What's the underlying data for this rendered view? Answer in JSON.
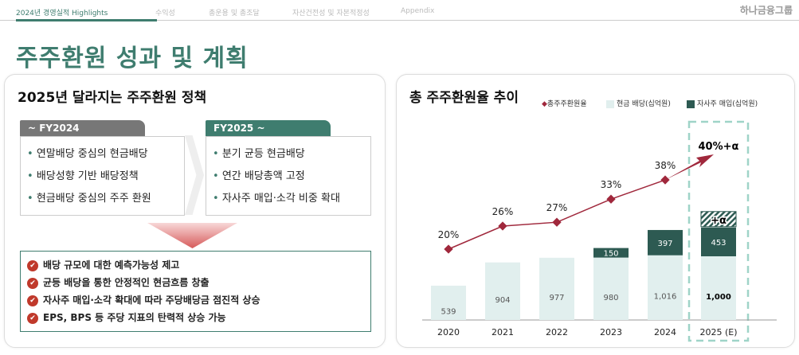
{
  "nav": {
    "items": [
      "2024년 경영실적 Highlights",
      "수익성",
      "총운용 및 총조달",
      "자산건전성 및 자본적정성",
      "Appendix"
    ],
    "logo": "하나금융그룹"
  },
  "page_title": "주주환원 성과 및 계획",
  "left": {
    "title": "2025년 달라지는 주주환원 정책",
    "fy2024": {
      "label": "~ FY2024",
      "items": [
        "연말배당 중심의 현금배당",
        "배당성향 기반 배당정책",
        "현금배당 중심의 주주 환원"
      ]
    },
    "fy2025": {
      "label": "FY2025 ~",
      "items": [
        "분기 균등 현금배당",
        "연간 배당총액 고정",
        "자사주 매입·소각 비중 확대"
      ]
    },
    "effects": [
      "배당 규모에 대한 예측가능성 제고",
      "균등 배당을 통한 안정적인 현금흐름 창출",
      "자사주 매입·소각 확대에 따라 주당배당금 점진적 상승",
      "EPS, BPS 등 주당 지표의 탄력적 상승 가능"
    ]
  },
  "colors": {
    "accent": "#3f7d6f",
    "line": "#a0283c",
    "cash": "#e1efee",
    "buyback": "#2d5a52"
  },
  "chart_data": {
    "type": "bar",
    "title": "총 주주환원율 추이",
    "categories": [
      "2020",
      "2021",
      "2022",
      "2023",
      "2024",
      "2025 (E)"
    ],
    "series": [
      {
        "name": "현금 배당(십억원)",
        "values": [
          539,
          904,
          977,
          980,
          1016,
          1000
        ],
        "labels": [
          "539",
          "904",
          "977",
          "980",
          "1,016",
          "1,000"
        ]
      },
      {
        "name": "자사주 매입(십억원)",
        "values": [
          0,
          0,
          0,
          150,
          397,
          453
        ],
        "labels": [
          "",
          "",
          "",
          "150",
          "397",
          "453"
        ]
      },
      {
        "name": "총주주환원율",
        "type": "line",
        "values": [
          20,
          26,
          27,
          33,
          38,
          40
        ],
        "labels": [
          "20%",
          "26%",
          "27%",
          "33%",
          "38%",
          "40%+α"
        ]
      }
    ],
    "extra_label": "+α",
    "legend_position": "top-right"
  }
}
